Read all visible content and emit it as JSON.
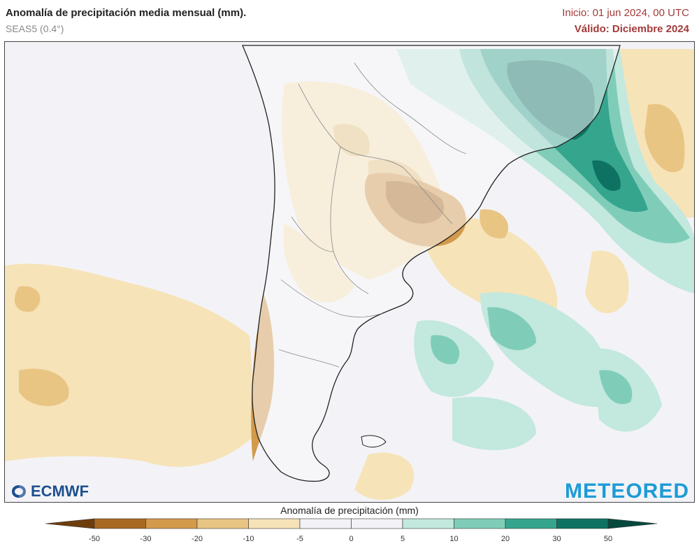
{
  "header": {
    "title": "Anomalía de precipitación media mensual (mm).",
    "subtitle": "SEAS5 (0.4°)",
    "init": "Inicio: 01 jun 2024, 00 UTC",
    "valid": "Válido: Diciembre 2024"
  },
  "logos": {
    "left": "ECMWF",
    "right": "METEORED"
  },
  "legend": {
    "title": "Anomalía de precipitación (mm)",
    "ticks": [
      "-50",
      "-30",
      "-20",
      "-10",
      "-5",
      "0",
      "5",
      "10",
      "20",
      "30",
      "50"
    ],
    "colors": [
      "#6e3d0c",
      "#a86a22",
      "#d39a4c",
      "#e9c584",
      "#f6e3b8",
      "#f3f3f7",
      "#f3f3f7",
      "#c3e8de",
      "#7fcdb8",
      "#35a58e",
      "#0e7263",
      "#04493e"
    ]
  },
  "map_colors": {
    "ocean": "#f3f3f7",
    "land": "#f7f7f9",
    "dry_light": "#f6e3b8",
    "dry_mid": "#e9c584",
    "dry_strong": "#d39a4c",
    "dry_very": "#a86a22",
    "wet_light": "#c3e8de",
    "wet_mid": "#7fcdb8",
    "wet_strong": "#35a58e",
    "wet_very": "#0e7263",
    "coast": "#222222",
    "borders": "#888888"
  }
}
